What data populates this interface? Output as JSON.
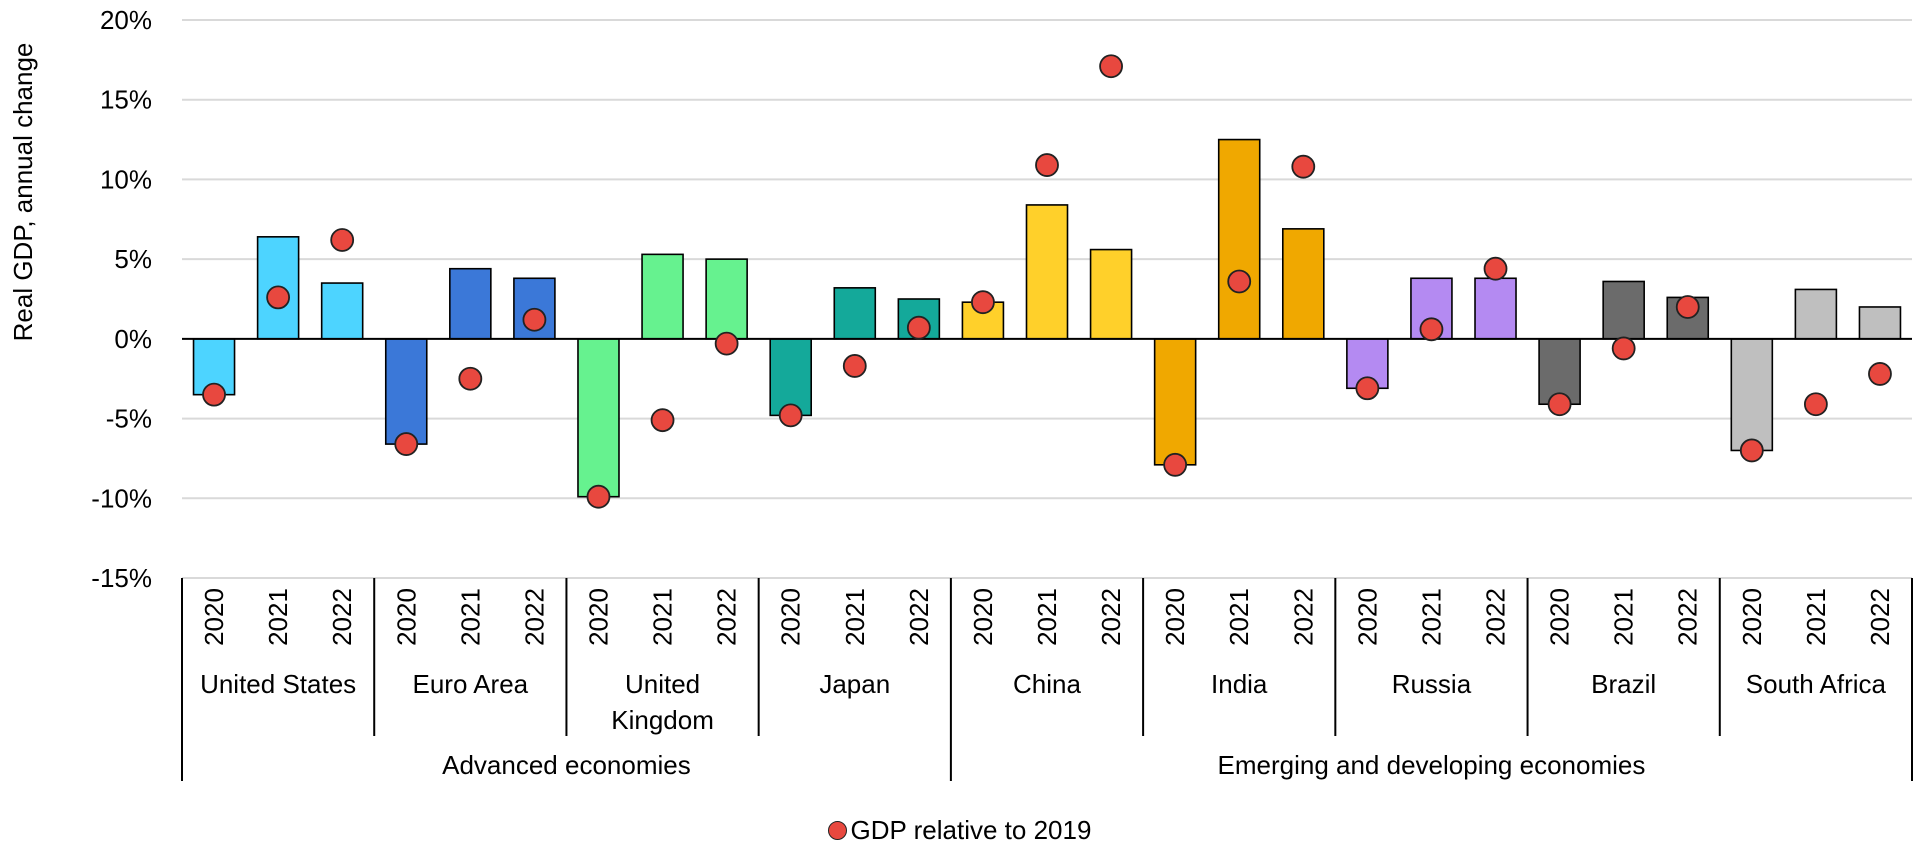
{
  "chart_data": {
    "type": "bar",
    "ylabel": "Real GDP,  annual change",
    "ylim": [
      -15,
      20
    ],
    "yticks": [
      20,
      15,
      10,
      5,
      0,
      -5,
      -10,
      -15
    ],
    "ytick_labels": [
      "20%",
      "15%",
      "10%",
      "5%",
      "0%",
      "-5%",
      "-10%",
      "-15%"
    ],
    "grid": true,
    "years": [
      "2020",
      "2021",
      "2022"
    ],
    "legend": {
      "position": "bottom",
      "marker_label": "GDP relative to 2019",
      "marker_color": "#e8483f"
    },
    "groups": [
      {
        "name": "Advanced economies",
        "countries": [
          "United States",
          "Euro Area",
          "United Kingdom",
          "Japan"
        ]
      },
      {
        "name": "Emerging and developing economies",
        "countries": [
          "China",
          "India",
          "Russia",
          "Brazil",
          "South Africa"
        ]
      }
    ],
    "countries": [
      {
        "name": "United States",
        "label_lines": [
          "United States"
        ],
        "color": "#4dd4ff",
        "annual_change": [
          -3.5,
          6.4,
          3.5
        ],
        "relative_to_2019": [
          -3.5,
          2.6,
          6.2
        ]
      },
      {
        "name": "Euro Area",
        "label_lines": [
          "Euro Area"
        ],
        "color": "#3b78d8",
        "annual_change": [
          -6.6,
          4.4,
          3.8
        ],
        "relative_to_2019": [
          -6.6,
          -2.5,
          1.2
        ]
      },
      {
        "name": "United Kingdom",
        "label_lines": [
          "United",
          "Kingdom"
        ],
        "color": "#66f28f",
        "annual_change": [
          -9.9,
          5.3,
          5.0
        ],
        "relative_to_2019": [
          -9.9,
          -5.1,
          -0.3
        ]
      },
      {
        "name": "Japan",
        "label_lines": [
          "Japan"
        ],
        "color": "#14a99a",
        "annual_change": [
          -4.8,
          3.2,
          2.5
        ],
        "relative_to_2019": [
          -4.8,
          -1.7,
          0.7
        ]
      },
      {
        "name": "China",
        "label_lines": [
          "China"
        ],
        "color": "#ffd02a",
        "annual_change": [
          2.3,
          8.4,
          5.6
        ],
        "relative_to_2019": [
          2.3,
          10.9,
          17.1
        ]
      },
      {
        "name": "India",
        "label_lines": [
          "India"
        ],
        "color": "#f0a800",
        "annual_change": [
          -7.9,
          12.5,
          6.9
        ],
        "relative_to_2019": [
          -7.9,
          3.6,
          10.8
        ]
      },
      {
        "name": "Russia",
        "label_lines": [
          "Russia"
        ],
        "color": "#b48af2",
        "annual_change": [
          -3.1,
          3.8,
          3.8
        ],
        "relative_to_2019": [
          -3.1,
          0.6,
          4.4
        ]
      },
      {
        "name": "Brazil",
        "label_lines": [
          "Brazil"
        ],
        "color": "#6b6b6b",
        "annual_change": [
          -4.1,
          3.6,
          2.6
        ],
        "relative_to_2019": [
          -4.1,
          -0.6,
          2.0
        ]
      },
      {
        "name": "South Africa",
        "label_lines": [
          "South Africa"
        ],
        "color": "#bfbfbf",
        "annual_change": [
          -7.0,
          3.1,
          2.0
        ],
        "relative_to_2019": [
          -7.0,
          -4.1,
          -2.2
        ]
      }
    ]
  }
}
